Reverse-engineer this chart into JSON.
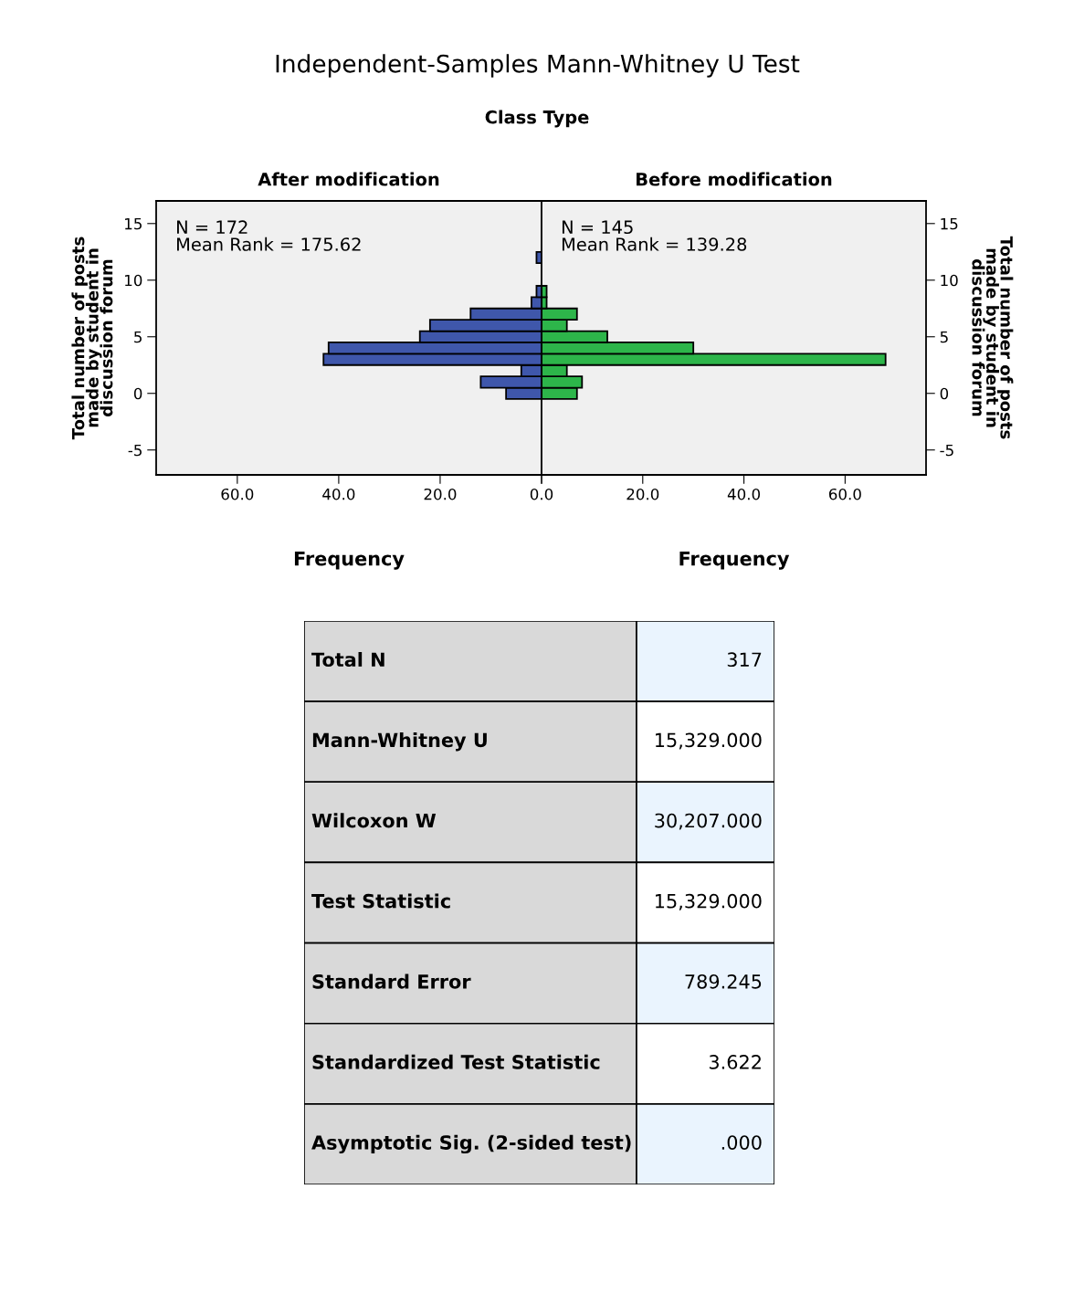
{
  "chart_data": [
    {
      "type": "other",
      "title": "Independent-Samples Mann-Whitney U Test",
      "subtitle": "Class Type"
    },
    {
      "type": "histogram",
      "orientation": "horizontal",
      "title": "After modification",
      "xlabel": "Frequency",
      "ylabel": "Total number of posts\nmade by student in\ndiscussion forum",
      "bins": [
        -0.5,
        0.5,
        1.5,
        2.5,
        3.5,
        4.5,
        5.5,
        6.5,
        7.5,
        8.5,
        9.5,
        10.5,
        11.5,
        12.5
      ],
      "values": [
        7,
        12,
        4,
        43,
        42,
        24,
        22,
        14,
        2,
        1,
        0,
        0,
        1
      ],
      "color": "#3f57ab",
      "xlim": [
        76,
        0
      ],
      "xticks": [
        {
          "value": 60,
          "label": "60.0"
        },
        {
          "value": 40,
          "label": "40.0"
        },
        {
          "value": 20,
          "label": "20.0"
        },
        {
          "value": 0,
          "label": "0.0"
        }
      ],
      "ylim": [
        -7.2,
        17
      ],
      "yticks": [
        -5,
        0,
        5,
        10,
        15
      ],
      "grid": false,
      "annotations": [
        "N = 172\nMean Rank = 175.62"
      ]
    },
    {
      "type": "histogram",
      "orientation": "horizontal",
      "title": "Before modification",
      "xlabel": "Frequency",
      "ylabel": "Total number of posts\nmade by student in\ndiscussion forum",
      "bins": [
        -0.5,
        0.5,
        1.5,
        2.5,
        3.5,
        4.5,
        5.5,
        6.5,
        7.5,
        8.5,
        9.5
      ],
      "values": [
        7,
        8,
        5,
        68,
        30,
        13,
        5,
        7,
        1,
        1
      ],
      "color": "#2db54a",
      "xlim": [
        0,
        76
      ],
      "xticks": [
        {
          "value": 0,
          "label": null
        },
        {
          "value": 20,
          "label": "20.0"
        },
        {
          "value": 40,
          "label": "40.0"
        },
        {
          "value": 60,
          "label": "60.0"
        }
      ],
      "ylim": [
        -7.2,
        17
      ],
      "yticks": [
        -5,
        0,
        5,
        10,
        15
      ],
      "grid": false,
      "annotations": [
        "N = 145\nMean Rank = 139.28"
      ]
    },
    {
      "type": "other",
      "categories": [
        "Total N",
        "Mann-Whitney U",
        "Wilcoxon W",
        "Test Statistic",
        "Standard Error",
        "Standardized Test Statistic",
        "Asymptotic Sig. (2-sided test)"
      ],
      "value_labels": [
        "317",
        "15,329.000",
        "30,207.000",
        "15,329.000",
        "789.245",
        "3.622",
        ".000"
      ]
    }
  ]
}
